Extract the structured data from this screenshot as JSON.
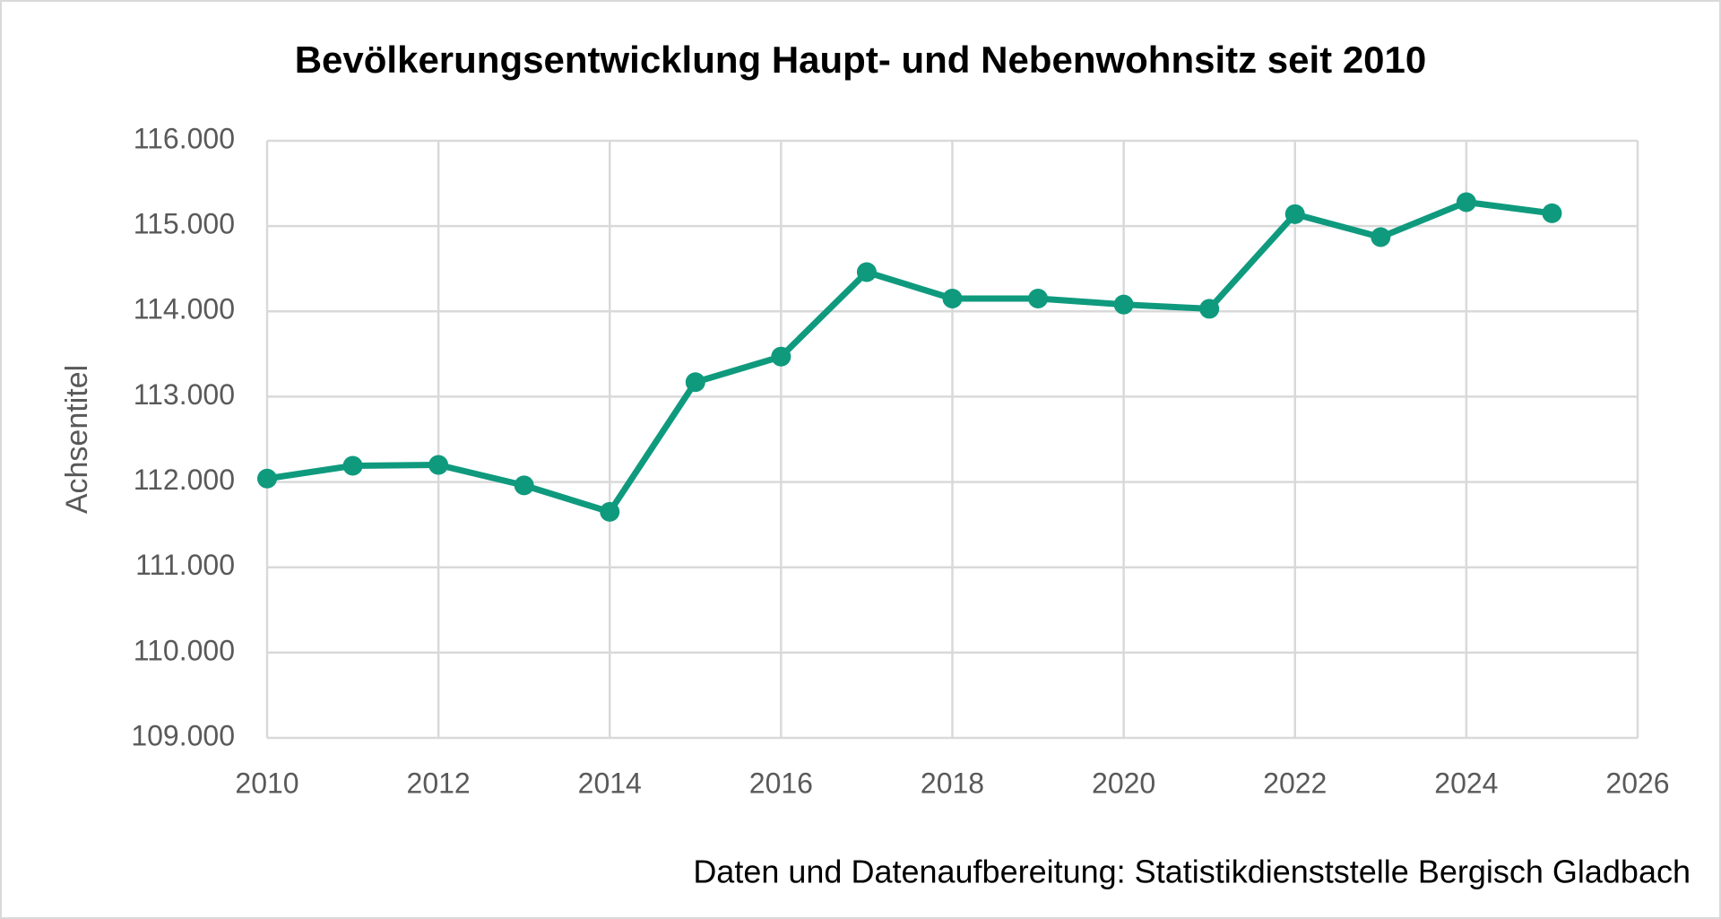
{
  "chart_data": {
    "type": "line",
    "title": "Bevölkerungsentwicklung Haupt- und Nebenwohnsitz seit 2010",
    "y_label": "Achsentitel",
    "source": "Daten und Datenaufbereitung: Statistikdienststelle Bergisch Gladbach",
    "x": [
      2010,
      2011,
      2012,
      2013,
      2014,
      2015,
      2016,
      2017,
      2018,
      2019,
      2020,
      2021,
      2022,
      2023,
      2024,
      2025
    ],
    "series": [
      {
        "color": "#0f9a7e",
        "values": [
          112040,
          112190,
          112200,
          111960,
          111650,
          113170,
          113470,
          114460,
          114150,
          114150,
          114080,
          114030,
          115140,
          114870,
          115280,
          115150
        ]
      }
    ],
    "xlim": [
      2010,
      2026
    ],
    "xticks": [
      2010,
      2012,
      2014,
      2016,
      2018,
      2020,
      2022,
      2024,
      2026
    ],
    "ylim": [
      109000,
      116000
    ],
    "yticks": [
      {
        "value": 109000,
        "label": "109.000"
      },
      {
        "value": 110000,
        "label": "110.000"
      },
      {
        "value": 111000,
        "label": "111.000"
      },
      {
        "value": 112000,
        "label": "112.000"
      },
      {
        "value": 113000,
        "label": "113.000"
      },
      {
        "value": 114000,
        "label": "114.000"
      },
      {
        "value": 115000,
        "label": "115.000"
      },
      {
        "value": 116000,
        "label": "116.000"
      }
    ],
    "grid": true
  }
}
